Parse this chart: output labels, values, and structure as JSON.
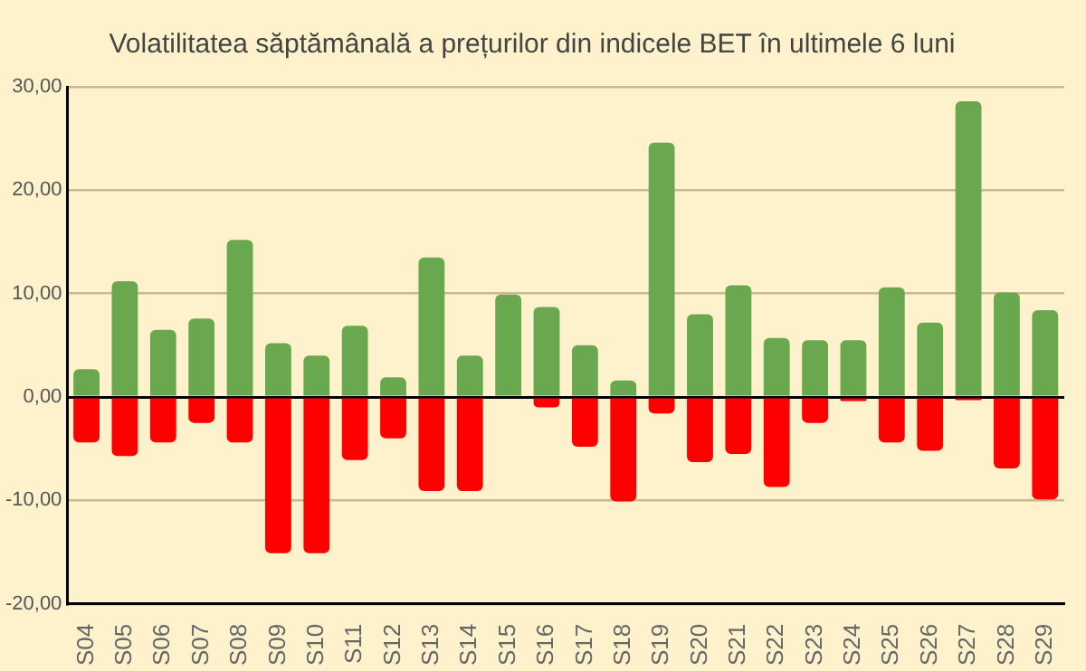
{
  "chart_data": {
    "type": "bar",
    "title": "Volatilitatea săptămânală a prețurilor din indicele BET în ultimele 6 luni",
    "categories": [
      "S04",
      "S05",
      "S06",
      "S07",
      "S08",
      "S09",
      "S10",
      "S11",
      "S12",
      "S13",
      "S14",
      "S15",
      "S16",
      "S17",
      "S18",
      "S19",
      "S20",
      "S21",
      "S22",
      "S23",
      "S24",
      "S25",
      "S26",
      "S27",
      "S28",
      "S29"
    ],
    "series": [
      {
        "color": "#6aa84f",
        "values": [
          2.7,
          11.2,
          6.5,
          7.6,
          15.2,
          5.2,
          4.0,
          6.9,
          1.9,
          13.5,
          4.0,
          9.9,
          8.7,
          5.0,
          1.6,
          24.6,
          8.0,
          10.8,
          5.7,
          5.5,
          5.5,
          10.6,
          7.2,
          28.6,
          10.1,
          8.4
        ]
      },
      {
        "color": "#ff0000",
        "values": [
          -4.4,
          -5.7,
          -4.4,
          -2.5,
          -4.4,
          -15.1,
          -15.1,
          -6.1,
          -4.0,
          -9.1,
          -9.1,
          0,
          -1.0,
          -4.8,
          -10.1,
          -1.6,
          -6.3,
          -5.5,
          -8.7,
          -2.5,
          -0.4,
          -4.4,
          -5.2,
          -0.3,
          -6.9,
          -9.9
        ]
      }
    ],
    "stacked": true,
    "ylim": [
      -20,
      30
    ],
    "yticks": [
      {
        "value": -20,
        "label": "-20,00"
      },
      {
        "value": -10,
        "label": "-10,00"
      },
      {
        "value": 0,
        "label": "0,00"
      },
      {
        "value": 10,
        "label": "10,00"
      },
      {
        "value": 20,
        "label": "20,00"
      },
      {
        "value": 30,
        "label": "30,00"
      }
    ],
    "grid": "y",
    "legend": false
  }
}
